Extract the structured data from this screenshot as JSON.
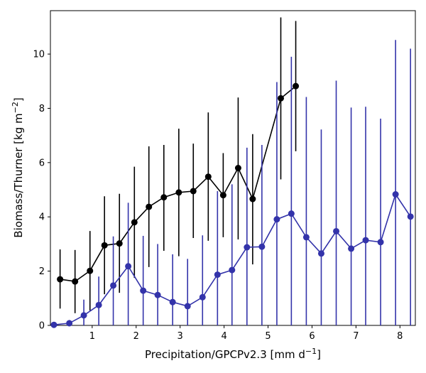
{
  "chart_data": {
    "type": "line",
    "xlabel": "Precipitation/GPCPv2.3 [mm d",
    "xlabel_sup": "−1",
    "xlabel_end": "]",
    "ylabel": "Biomass/Thurner [kg m",
    "ylabel_sup": "−2",
    "ylabel_end": "]",
    "xlim": [
      0.05,
      8.35
    ],
    "ylim": [
      0,
      11.6
    ],
    "xticks": [
      1,
      2,
      3,
      4,
      5,
      6,
      7,
      8
    ],
    "yticks": [
      0,
      2,
      4,
      6,
      8,
      10
    ],
    "grid": false,
    "series": [
      {
        "color": "#000000",
        "marker": "circle",
        "x": [
          0.27,
          0.61,
          0.95,
          1.28,
          1.62,
          1.96,
          2.29,
          2.63,
          2.97,
          3.3,
          3.64,
          3.98,
          4.32,
          4.65,
          5.29,
          5.63
        ],
        "y": [
          1.7,
          1.62,
          2.01,
          2.95,
          3.02,
          3.8,
          4.37,
          4.72,
          4.9,
          4.95,
          5.48,
          4.8,
          5.8,
          4.66,
          8.37,
          8.82
        ],
        "err_low": [
          0.62,
          0.45,
          0.55,
          1.15,
          1.2,
          1.75,
          2.15,
          2.75,
          2.55,
          3.22,
          3.12,
          3.25,
          3.17,
          2.25,
          5.38,
          6.42
        ],
        "err_high": [
          2.8,
          2.78,
          3.48,
          4.76,
          4.85,
          5.85,
          6.6,
          6.65,
          7.25,
          6.7,
          7.85,
          6.35,
          8.4,
          7.05,
          11.35,
          11.22
        ]
      },
      {
        "color": "#3333aa",
        "marker": "circle",
        "x": [
          0.13,
          0.48,
          0.81,
          1.15,
          1.48,
          1.82,
          2.16,
          2.49,
          2.83,
          3.17,
          3.51,
          3.85,
          4.18,
          4.52,
          4.86,
          5.2,
          5.53,
          5.87,
          6.21,
          6.55,
          6.89,
          7.22,
          7.56,
          7.9,
          8.24
        ],
        "y": [
          0.02,
          0.08,
          0.37,
          0.75,
          1.47,
          2.18,
          1.28,
          1.12,
          0.86,
          0.71,
          1.04,
          1.87,
          2.04,
          2.88,
          2.9,
          3.91,
          4.12,
          3.25,
          2.65,
          3.47,
          2.83,
          3.14,
          3.07,
          4.83,
          4.01
        ],
        "err_low": [
          0,
          0,
          0,
          0,
          0,
          0,
          0,
          0,
          0,
          0,
          0,
          0,
          0,
          0,
          0,
          0,
          0,
          0,
          0,
          0,
          0,
          0,
          0,
          0,
          0
        ],
        "err_high": [
          0.05,
          0.2,
          0.95,
          1.8,
          3.28,
          4.52,
          3.3,
          3.0,
          2.62,
          2.45,
          3.32,
          4.95,
          5.2,
          6.55,
          6.65,
          8.97,
          9.9,
          8.42,
          7.22,
          9.02,
          8.03,
          8.06,
          7.62,
          10.52,
          10.2
        ]
      }
    ]
  }
}
